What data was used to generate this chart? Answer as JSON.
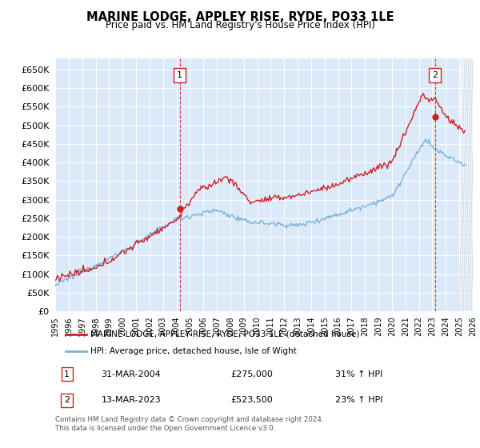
{
  "title": "MARINE LODGE, APPLEY RISE, RYDE, PO33 1LE",
  "subtitle": "Price paid vs. HM Land Registry's House Price Index (HPI)",
  "legend_line1": "MARINE LODGE, APPLEY RISE, RYDE, PO33 1LE (detached house)",
  "legend_line2": "HPI: Average price, detached house, Isle of Wight",
  "annotation1_date": "31-MAR-2004",
  "annotation1_price": "£275,000",
  "annotation1_hpi": "31% ↑ HPI",
  "annotation2_date": "13-MAR-2023",
  "annotation2_price": "£523,500",
  "annotation2_hpi": "23% ↑ HPI",
  "footer1": "Contains HM Land Registry data © Crown copyright and database right 2024.",
  "footer2": "This data is licensed under the Open Government Licence v3.0.",
  "ylim": [
    0,
    680000
  ],
  "yticks": [
    0,
    50000,
    100000,
    150000,
    200000,
    250000,
    300000,
    350000,
    400000,
    450000,
    500000,
    550000,
    600000,
    650000
  ],
  "plot_bg": "#dce9f8",
  "hpi_color": "#7ab3db",
  "sale_color": "#cc2222",
  "grid_color": "#ffffff",
  "sale1_x": 2004.25,
  "sale1_y": 275000,
  "sale2_x": 2023.2,
  "sale2_y": 523500,
  "xlim_start": 1995,
  "xlim_end": 2026
}
